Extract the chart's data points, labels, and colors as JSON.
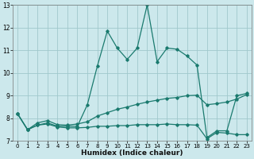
{
  "xlabel": "Humidex (Indice chaleur)",
  "background_color": "#cce8ec",
  "grid_color": "#a0c8cc",
  "line_color": "#1a7a6e",
  "xlim": [
    -0.5,
    23.5
  ],
  "ylim": [
    7,
    13
  ],
  "yticks": [
    7,
    8,
    9,
    10,
    11,
    12,
    13
  ],
  "xticks": [
    0,
    1,
    2,
    3,
    4,
    5,
    6,
    7,
    8,
    9,
    10,
    11,
    12,
    13,
    14,
    15,
    16,
    17,
    18,
    19,
    20,
    21,
    22,
    23
  ],
  "series1_x": [
    0,
    1,
    2,
    3,
    4,
    5,
    6,
    7,
    8,
    9,
    10,
    11,
    12,
    13,
    14,
    15,
    16,
    17,
    18,
    19,
    20,
    21,
    22,
    23
  ],
  "series1_y": [
    8.2,
    7.5,
    7.7,
    7.8,
    7.65,
    7.65,
    7.65,
    8.6,
    10.3,
    11.85,
    11.1,
    10.6,
    11.1,
    13.0,
    10.5,
    11.1,
    11.05,
    10.75,
    10.35,
    7.15,
    7.45,
    7.45,
    9.0,
    9.1
  ],
  "series2_x": [
    0,
    1,
    2,
    3,
    4,
    5,
    6,
    7,
    8,
    9,
    10,
    11,
    12,
    13,
    14,
    15,
    16,
    17,
    18,
    19,
    20,
    21,
    22,
    23
  ],
  "series2_y": [
    8.2,
    7.5,
    7.8,
    7.9,
    7.72,
    7.7,
    7.75,
    7.85,
    8.1,
    8.25,
    8.4,
    8.5,
    8.62,
    8.72,
    8.8,
    8.88,
    8.92,
    9.0,
    9.02,
    8.6,
    8.65,
    8.72,
    8.85,
    9.05
  ],
  "series3_x": [
    0,
    1,
    2,
    3,
    4,
    5,
    6,
    7,
    8,
    9,
    10,
    11,
    12,
    13,
    14,
    15,
    16,
    17,
    18,
    19,
    20,
    21,
    22,
    23
  ],
  "series3_y": [
    8.2,
    7.5,
    7.7,
    7.75,
    7.62,
    7.58,
    7.58,
    7.6,
    7.65,
    7.65,
    7.68,
    7.68,
    7.72,
    7.72,
    7.72,
    7.75,
    7.72,
    7.72,
    7.7,
    7.1,
    7.38,
    7.35,
    7.28,
    7.28
  ]
}
